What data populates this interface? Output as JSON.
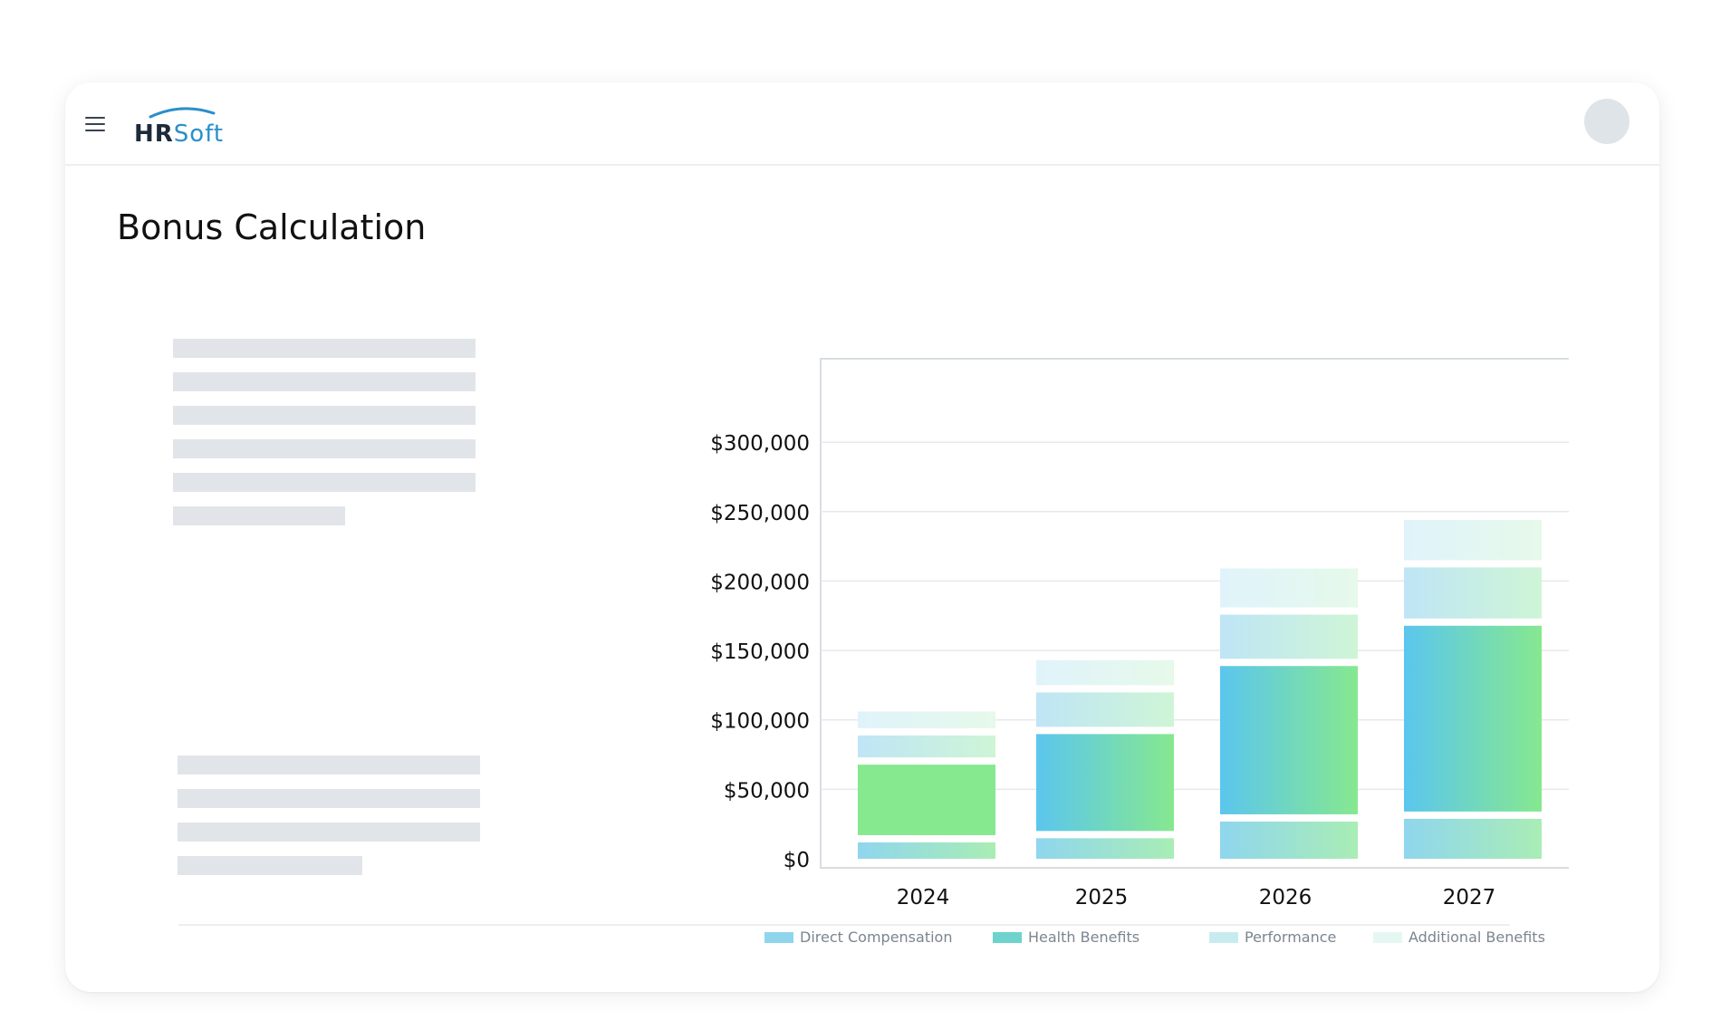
{
  "app": {
    "logo_hr": "HR",
    "logo_soft": "Soft",
    "menu_icon": "hamburger-menu-icon",
    "avatar_icon": "user-avatar"
  },
  "page": {
    "title": "Bonus Calculation"
  },
  "colors": {
    "direct_compensation": "#8fd6ec",
    "health_benefits": "#6dd3cc",
    "performance": "#c7ecf0",
    "additional_benefits": "#e5f7f2",
    "bar_blue": "#5bc6ee",
    "bar_green": "#86e88f",
    "skeleton": "#e1e5e9"
  },
  "chart_data": {
    "type": "bar",
    "stacked": true,
    "categories": [
      "2024",
      "2025",
      "2026",
      "2027"
    ],
    "y_ticks": [
      "$0",
      "$50,000",
      "$100,000",
      "$150,000",
      "$200,000",
      "$250,000",
      "$300,000"
    ],
    "ylim": [
      0,
      300000
    ],
    "grid": true,
    "legend_position": "bottom",
    "series": [
      {
        "name": "Direct Compensation",
        "values": [
          17000,
          20000,
          32000,
          34000
        ]
      },
      {
        "name": "Health Benefits",
        "values": [
          56000,
          75000,
          112000,
          139000
        ]
      },
      {
        "name": "Performance",
        "values": [
          21000,
          30000,
          37000,
          42000
        ]
      },
      {
        "name": "Additional Benefits",
        "values": [
          12000,
          18000,
          28000,
          29000
        ]
      }
    ]
  }
}
